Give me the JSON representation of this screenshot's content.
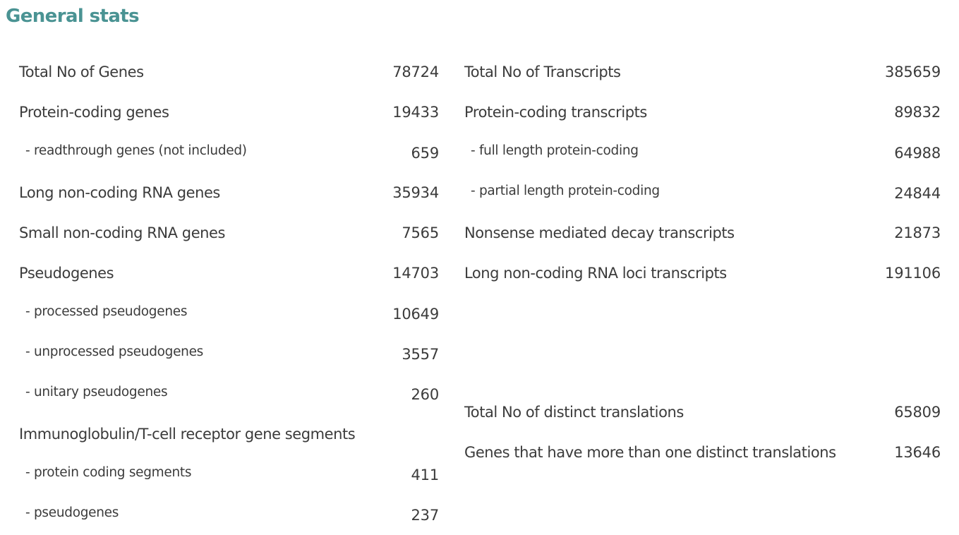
{
  "title": "General stats",
  "genes": [
    {
      "label": "Total No of Genes",
      "value": "78724",
      "sub": false
    },
    {
      "label": "Protein-coding genes",
      "value": "19433",
      "sub": false
    },
    {
      "label": "- readthrough genes (not included)",
      "value": "659",
      "sub": true
    },
    {
      "label": "Long non-coding RNA genes",
      "value": "35934",
      "sub": false
    },
    {
      "label": "Small non-coding RNA genes",
      "value": "7565",
      "sub": false
    },
    {
      "label": "Pseudogenes",
      "value": "14703",
      "sub": false
    },
    {
      "label": "- processed pseudogenes",
      "value": "10649",
      "sub": true
    },
    {
      "label": "- unprocessed pseudogenes",
      "value": "3557",
      "sub": true
    },
    {
      "label": "- unitary pseudogenes",
      "value": "260",
      "sub": true
    },
    {
      "label": "Immunoglobulin/T-cell receptor gene segments",
      "value": "",
      "sub": false
    },
    {
      "label": "- protein coding segments",
      "value": "411",
      "sub": true
    },
    {
      "label": "- pseudogenes",
      "value": "237",
      "sub": true
    }
  ],
  "transcripts": [
    {
      "label": "Total No of Transcripts",
      "value": "385659",
      "sub": false
    },
    {
      "label": "Protein-coding transcripts",
      "value": "89832",
      "sub": false
    },
    {
      "label": "- full length protein-coding",
      "value": "64988",
      "sub": true
    },
    {
      "label": "- partial length protein-coding",
      "value": "24844",
      "sub": true
    },
    {
      "label": "Nonsense mediated decay transcripts",
      "value": "21873",
      "sub": false
    },
    {
      "label": "Long non-coding RNA loci transcripts",
      "value": "191106",
      "sub": false
    }
  ],
  "translations": [
    {
      "label": "Total No of distinct translations",
      "value": "65809",
      "sub": false
    },
    {
      "label": "Genes that have more than one distinct translations",
      "value": "13646",
      "sub": false
    }
  ]
}
